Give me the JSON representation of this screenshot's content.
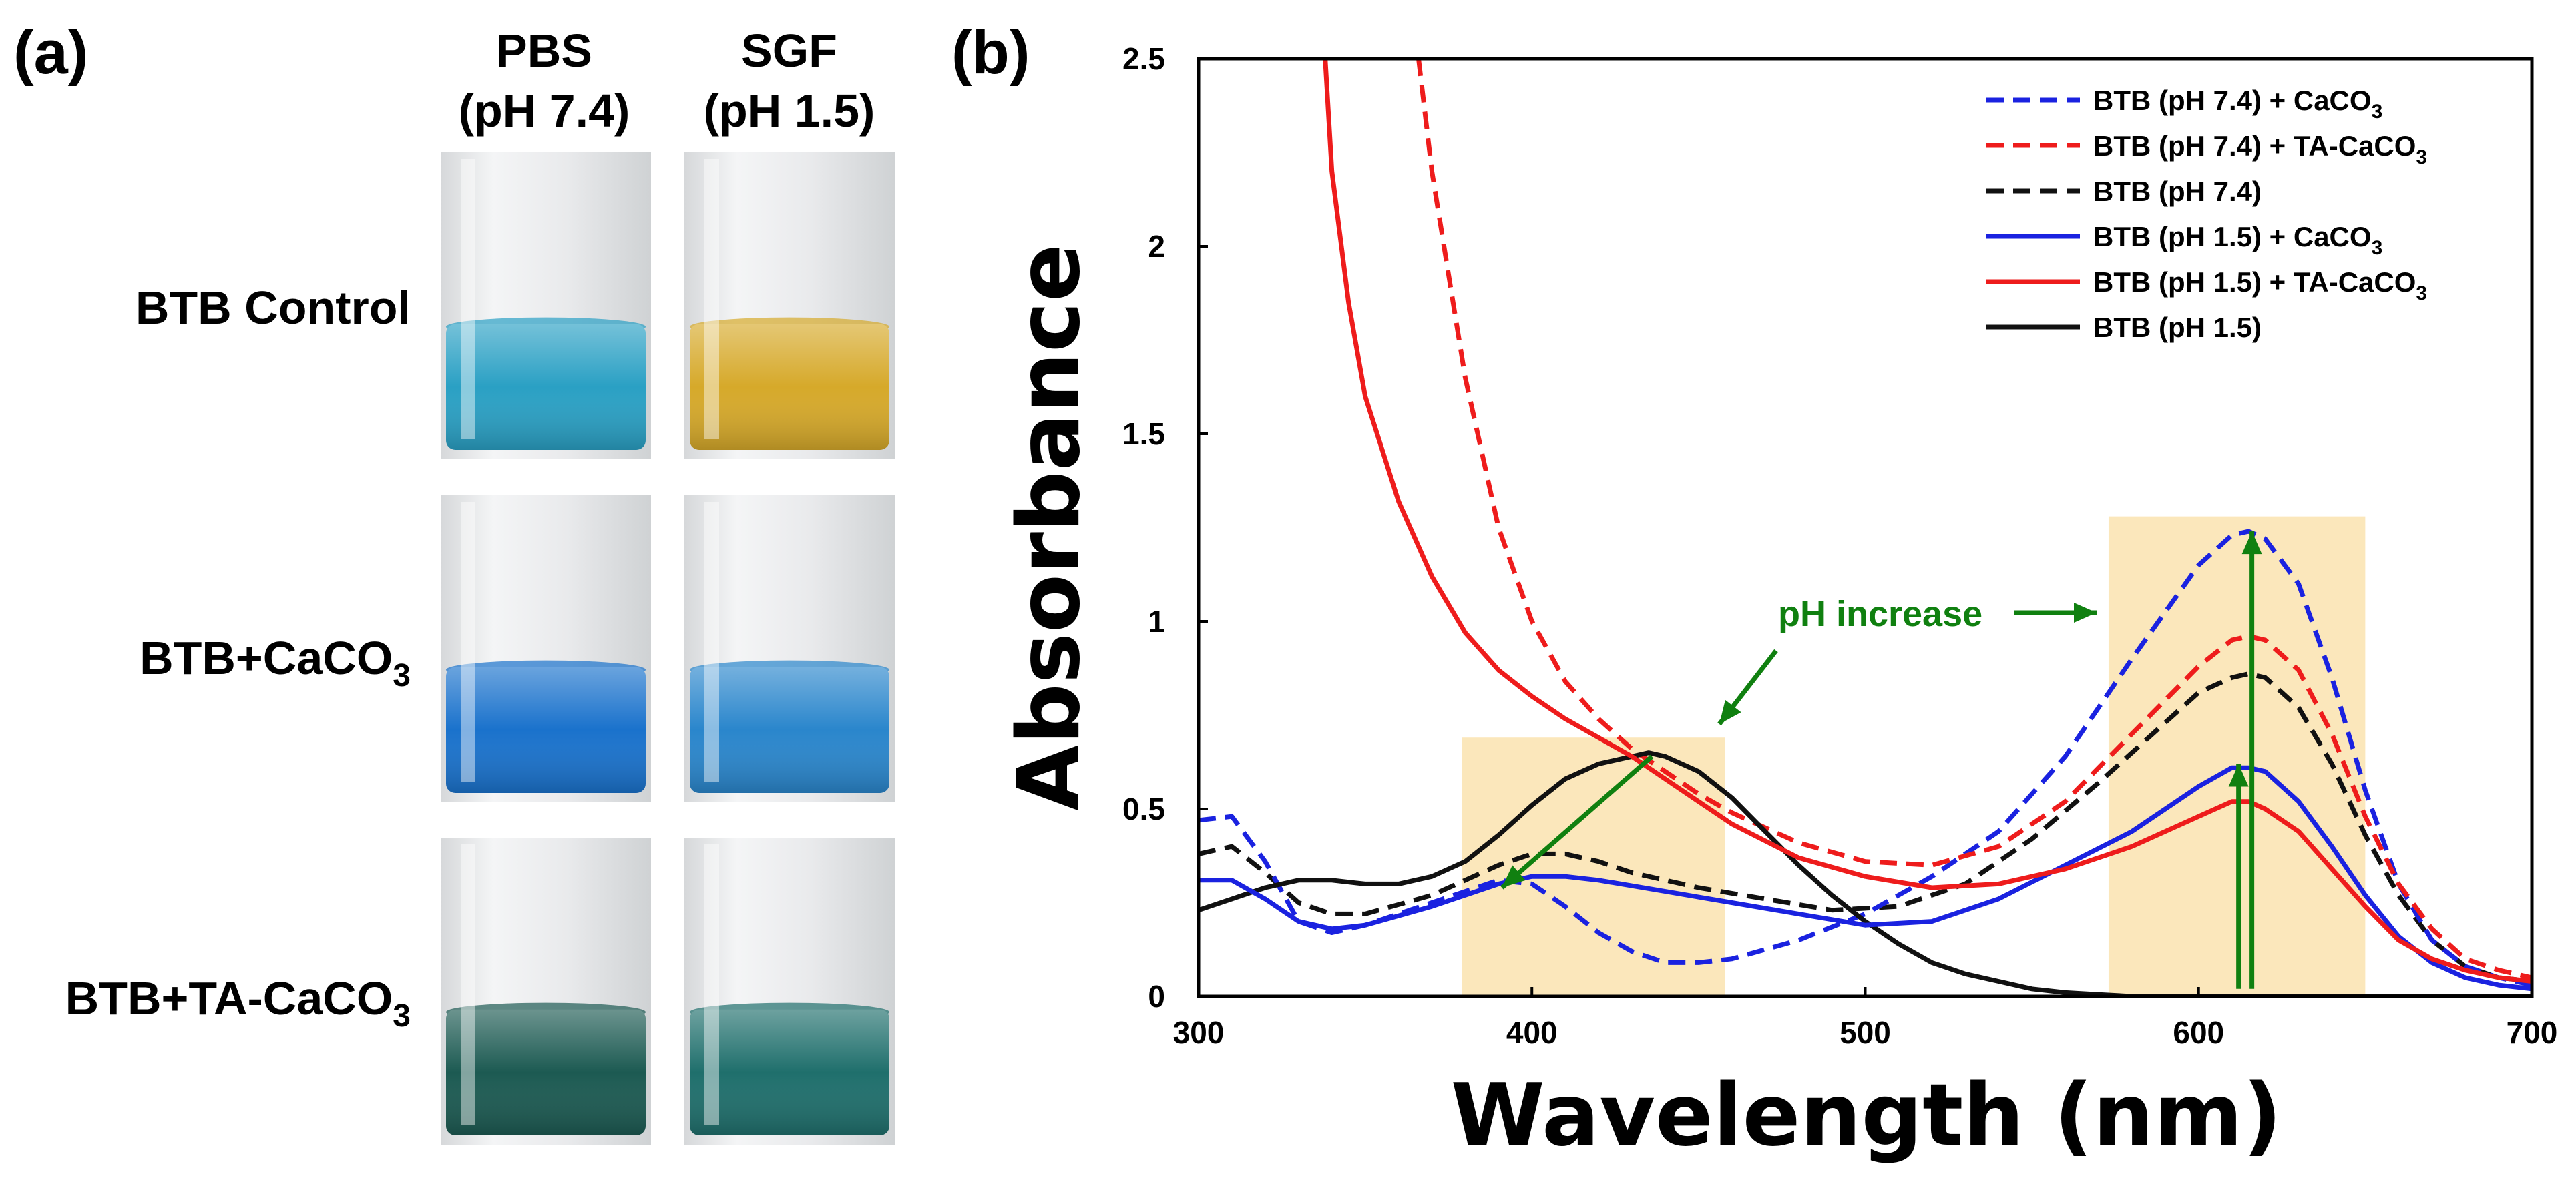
{
  "panel_a": {
    "label": "(a)",
    "columns": [
      {
        "line1": "PBS",
        "line2": "(pH 7.4)"
      },
      {
        "line1": "SGF",
        "line2": "(pH 1.5)"
      }
    ],
    "rows": [
      {
        "label": "BTB Control",
        "sub": ""
      },
      {
        "label": "BTB+CaCO",
        "sub": "3"
      },
      {
        "label": "BTB+TA-CaCO",
        "sub": "3"
      }
    ],
    "liquid_colors": [
      [
        "#2aa0c4",
        "#d6a92a"
      ],
      [
        "#1a72cc",
        "#2a86cc"
      ],
      [
        "#1c5a52",
        "#1f6f6c"
      ]
    ]
  },
  "panel_b": {
    "label": "(b)",
    "annotation": "pH increase",
    "highlight_color": "#fbe7bb",
    "arrow_color": "#108010"
  },
  "chart_data": {
    "type": "line",
    "xlabel": "Wavelength (nm)",
    "ylabel": "Absorbance",
    "xlim": [
      300,
      700
    ],
    "ylim": [
      0,
      2.5
    ],
    "xticks": [
      300,
      400,
      500,
      600,
      700
    ],
    "yticks": [
      0,
      0.5,
      1,
      1.5,
      2,
      2.5
    ],
    "ytick_labels": [
      "0",
      "0.5",
      "1",
      "1.5",
      "2",
      "2.5"
    ],
    "legend_position": "top-right",
    "highlight_ranges": [
      [
        379,
        458
      ],
      [
        573,
        650
      ]
    ],
    "series": [
      {
        "name": "BTB (pH 7.4) + CaCO",
        "sub": "3",
        "color": "#1a22e0",
        "dash": true,
        "x": [
          300,
          310,
          320,
          330,
          340,
          350,
          370,
          390,
          400,
          410,
          420,
          430,
          440,
          450,
          460,
          480,
          500,
          520,
          540,
          560,
          580,
          600,
          610,
          615,
          620,
          630,
          640,
          650,
          660,
          670,
          680,
          690,
          700
        ],
        "y": [
          0.47,
          0.48,
          0.36,
          0.2,
          0.17,
          0.19,
          0.25,
          0.31,
          0.3,
          0.24,
          0.17,
          0.12,
          0.09,
          0.09,
          0.1,
          0.15,
          0.22,
          0.32,
          0.44,
          0.64,
          0.9,
          1.15,
          1.23,
          1.24,
          1.22,
          1.1,
          0.85,
          0.55,
          0.3,
          0.15,
          0.08,
          0.05,
          0.03
        ]
      },
      {
        "name": "BTB (pH 7.4) + TA-CaCO",
        "sub": "3",
        "color": "#ee1c1c",
        "dash": true,
        "x": [
          366,
          370,
          380,
          390,
          400,
          410,
          420,
          430,
          440,
          450,
          460,
          480,
          500,
          520,
          540,
          560,
          580,
          600,
          610,
          615,
          620,
          630,
          640,
          650,
          660,
          670,
          680,
          690,
          700
        ],
        "y": [
          2.5,
          2.2,
          1.65,
          1.25,
          1.0,
          0.84,
          0.74,
          0.66,
          0.6,
          0.54,
          0.49,
          0.41,
          0.36,
          0.35,
          0.4,
          0.52,
          0.7,
          0.88,
          0.95,
          0.96,
          0.95,
          0.87,
          0.7,
          0.48,
          0.3,
          0.18,
          0.1,
          0.07,
          0.05
        ]
      },
      {
        "name": "BTB (pH 7.4)",
        "sub": "",
        "color": "#111111",
        "dash": true,
        "x": [
          300,
          310,
          320,
          330,
          340,
          350,
          370,
          390,
          400,
          410,
          420,
          430,
          450,
          470,
          490,
          510,
          530,
          550,
          570,
          590,
          600,
          610,
          615,
          620,
          630,
          640,
          650,
          660,
          670,
          680,
          690,
          700
        ],
        "y": [
          0.38,
          0.4,
          0.33,
          0.25,
          0.22,
          0.22,
          0.27,
          0.35,
          0.38,
          0.38,
          0.36,
          0.33,
          0.29,
          0.26,
          0.23,
          0.24,
          0.3,
          0.42,
          0.57,
          0.73,
          0.81,
          0.85,
          0.86,
          0.85,
          0.77,
          0.62,
          0.43,
          0.27,
          0.15,
          0.08,
          0.05,
          0.04
        ]
      },
      {
        "name": "BTB (pH 1.5) + CaCO",
        "sub": "3",
        "color": "#1a22e0",
        "dash": false,
        "x": [
          300,
          310,
          320,
          330,
          340,
          350,
          370,
          390,
          400,
          410,
          420,
          440,
          460,
          480,
          500,
          520,
          540,
          560,
          580,
          600,
          610,
          615,
          620,
          630,
          640,
          650,
          660,
          670,
          680,
          690,
          700
        ],
        "y": [
          0.31,
          0.31,
          0.26,
          0.2,
          0.18,
          0.19,
          0.24,
          0.3,
          0.32,
          0.32,
          0.31,
          0.28,
          0.25,
          0.22,
          0.19,
          0.2,
          0.26,
          0.35,
          0.44,
          0.56,
          0.61,
          0.61,
          0.6,
          0.52,
          0.4,
          0.27,
          0.16,
          0.09,
          0.05,
          0.03,
          0.02
        ]
      },
      {
        "name": "BTB (pH 1.5) + TA-CaCO",
        "sub": "3",
        "color": "#ee1c1c",
        "dash": false,
        "x": [
          338,
          340,
          345,
          350,
          360,
          370,
          380,
          390,
          400,
          410,
          420,
          430,
          440,
          450,
          460,
          480,
          500,
          520,
          540,
          560,
          580,
          600,
          610,
          615,
          620,
          630,
          640,
          650,
          660,
          670,
          680,
          690,
          700
        ],
        "y": [
          2.5,
          2.2,
          1.85,
          1.6,
          1.32,
          1.12,
          0.97,
          0.87,
          0.8,
          0.74,
          0.69,
          0.64,
          0.58,
          0.52,
          0.46,
          0.37,
          0.32,
          0.29,
          0.3,
          0.34,
          0.4,
          0.48,
          0.52,
          0.52,
          0.5,
          0.44,
          0.34,
          0.24,
          0.15,
          0.1,
          0.07,
          0.05,
          0.04
        ]
      },
      {
        "name": "BTB (pH 1.5)",
        "sub": "",
        "color": "#111111",
        "dash": false,
        "x": [
          300,
          310,
          320,
          330,
          340,
          350,
          360,
          370,
          380,
          390,
          400,
          410,
          420,
          430,
          435,
          440,
          450,
          460,
          470,
          480,
          490,
          500,
          510,
          520,
          530,
          540,
          550,
          560,
          570,
          580,
          600,
          650,
          700
        ],
        "y": [
          0.23,
          0.26,
          0.29,
          0.31,
          0.31,
          0.3,
          0.3,
          0.32,
          0.36,
          0.43,
          0.51,
          0.58,
          0.62,
          0.64,
          0.65,
          0.64,
          0.6,
          0.53,
          0.44,
          0.35,
          0.27,
          0.2,
          0.14,
          0.09,
          0.06,
          0.04,
          0.02,
          0.01,
          0.005,
          0.0,
          0.0,
          0.0,
          0.0
        ]
      }
    ]
  }
}
